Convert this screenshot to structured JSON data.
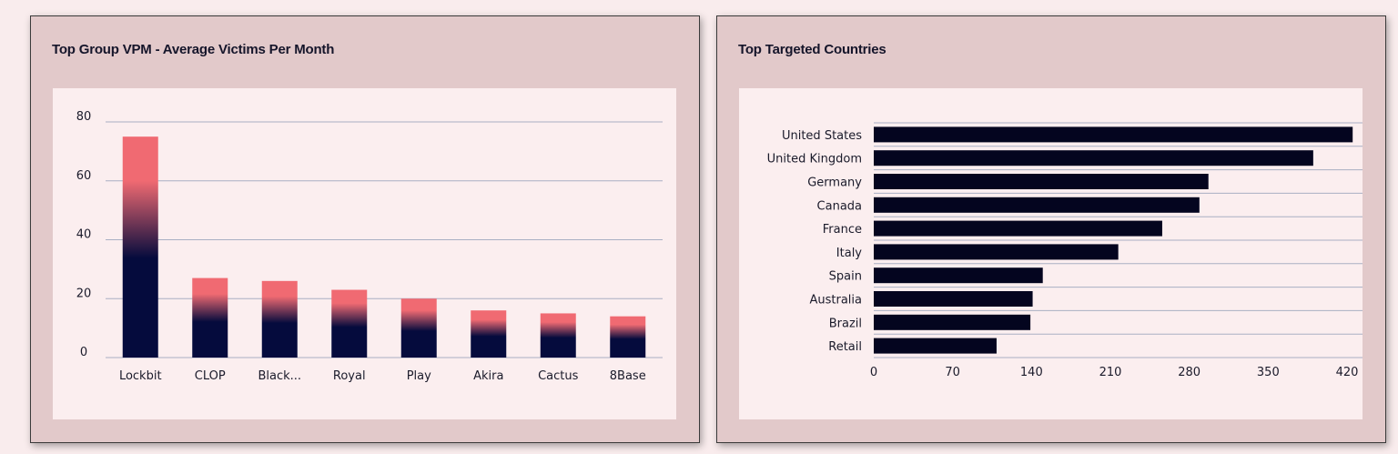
{
  "chart_data": [
    {
      "type": "bar",
      "title": "Top Group VPM - Average Victims Per Month",
      "categories": [
        "Lockbit",
        "CLOP",
        "Black...",
        "Royal",
        "Play",
        "Akira",
        "Cactus",
        "8Base"
      ],
      "values": [
        75,
        27,
        26,
        23,
        20,
        16,
        15,
        14
      ],
      "ylim": [
        0,
        80
      ],
      "yticks": [
        "0",
        "20",
        "40",
        "60",
        "80"
      ],
      "grid": true,
      "colors": {
        "top": "#f06a72",
        "bottom": "#050b3d"
      }
    },
    {
      "type": "bar",
      "orientation": "horizontal",
      "title": "Top Targeted Countries",
      "categories": [
        "United States",
        "United Kingdom",
        "Germany",
        "Canada",
        "France",
        "Italy",
        "Spain",
        "Australia",
        "Brazil",
        "Retail"
      ],
      "values": [
        425,
        390,
        297,
        289,
        256,
        217,
        150,
        141,
        139,
        109
      ],
      "xlim": [
        0,
        420
      ],
      "xticks": [
        "0",
        "70",
        "140",
        "210",
        "280",
        "350",
        "420"
      ],
      "grid": true,
      "colors": {
        "bar": "#04051f"
      }
    }
  ]
}
